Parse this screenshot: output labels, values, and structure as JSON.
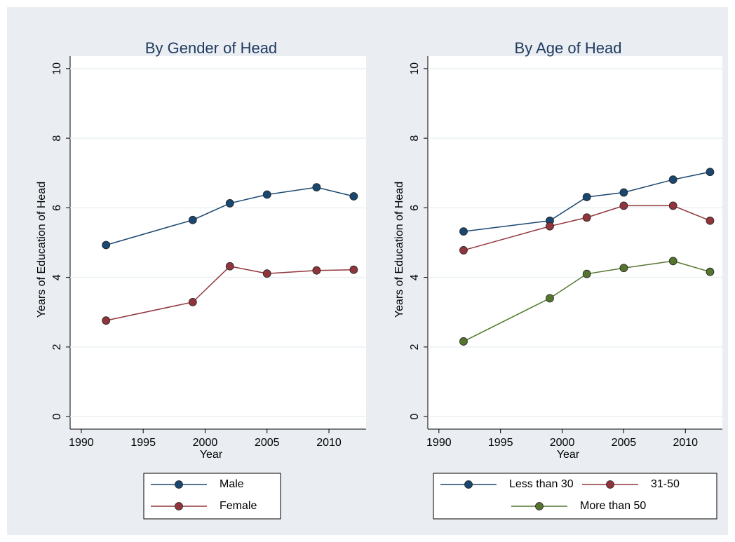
{
  "chart_data": [
    {
      "type": "line",
      "title": "By Gender of Head",
      "x_label": "Year",
      "y_label": "Years of Education of Head",
      "x": [
        1992,
        1999,
        2002,
        2005,
        2009,
        2012
      ],
      "series": [
        {
          "name": "Male",
          "color": "#1a476f",
          "values": [
            4.93,
            5.65,
            6.13,
            6.38,
            6.59,
            6.33
          ]
        },
        {
          "name": "Female",
          "color": "#90353b",
          "values": [
            2.76,
            3.29,
            4.32,
            4.11,
            4.2,
            4.22
          ]
        }
      ],
      "xlim": [
        1989.1,
        2013
      ],
      "xticks": [
        1990,
        1995,
        2000,
        2005,
        2010
      ],
      "ylim": [
        -0.36,
        10.36
      ],
      "yticks": [
        0,
        2,
        4,
        6,
        8,
        10
      ],
      "grid": true
    },
    {
      "type": "line",
      "title": "By Age of Head",
      "x_label": "Year",
      "y_label": "Years of Education of Head",
      "x": [
        1992,
        1999,
        2002,
        2005,
        2009,
        2012
      ],
      "series": [
        {
          "name": "Less than 30",
          "color": "#1a476f",
          "values": [
            5.32,
            5.63,
            6.31,
            6.44,
            6.81,
            7.03
          ]
        },
        {
          "name": "31-50",
          "color": "#90353b",
          "values": [
            4.78,
            5.47,
            5.72,
            6.06,
            6.06,
            5.63
          ]
        },
        {
          "name": "More than 50",
          "color": "#55752f",
          "values": [
            2.16,
            3.4,
            4.1,
            4.27,
            4.47,
            4.16
          ]
        }
      ],
      "xlim": [
        1989.1,
        2013
      ],
      "xticks": [
        1990,
        1995,
        2000,
        2005,
        2010
      ],
      "ylim": [
        -0.36,
        10.36
      ],
      "yticks": [
        0,
        2,
        4,
        6,
        8,
        10
      ],
      "grid": true
    }
  ]
}
